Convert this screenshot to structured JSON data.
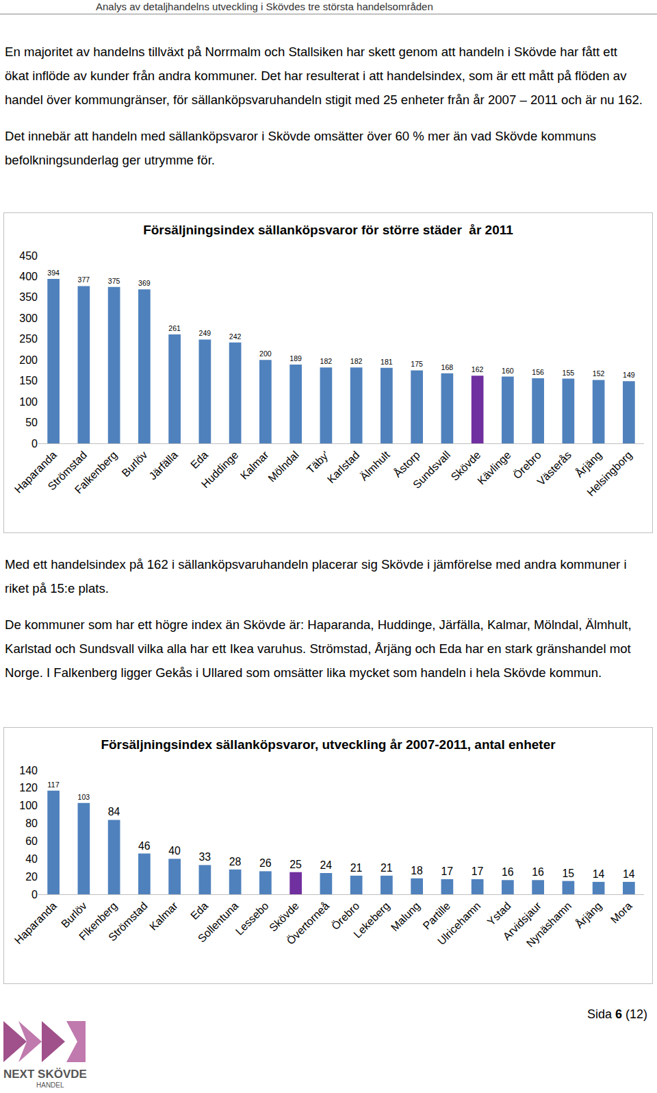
{
  "header": "Analys av detaljhandelns utveckling i Skövdes tre största handelsområden",
  "intro": [
    "En majoritet av handelns tillväxt på Norrmalm och Stallsiken har skett genom att handeln i Skövde har fått ett ökat inflöde av kunder från andra kommuner. Det har resulterat i att handelsindex, som är ett mått på flöden av handel över kommungränser, för sällanköpsvaruhandeln stigit med 25 enheter från år 2007 – 2011 och är nu 162.",
    "Det innebär att handeln med sällanköpsvaror i Skövde omsätter över 60 % mer än vad Skövde kommuns befolkningsunderlag ger utrymme för."
  ],
  "middle": [
    "Med ett handelsindex på 162 i sällanköpsvaruhandeln placerar sig Skövde i jämförelse med andra kommuner i riket på 15:e plats.",
    "De kommuner som har ett högre index än Skövde är: Haparanda, Huddinge, Järfälla, Kalmar, Mölndal, Älmhult, Karlstad och Sundsvall vilka alla har ett Ikea varuhus. Strömstad, Årjäng och Eda har en stark gränshandel mot Norge. I Falkenberg ligger Gekås i Ullared som omsätter lika mycket som handeln i hela Skövde kommun."
  ],
  "chart_data": [
    {
      "type": "bar",
      "title": "Försäljningsindex sällanköpsvaror för större städer  år 2011",
      "categories": [
        "Haparanda",
        "Strömstad",
        "Falkenberg",
        "Burlöv",
        "Järfälla",
        "Eda",
        "Huddinge",
        "Kalmar",
        "Mölndal",
        "Täby'",
        "Karlstad",
        "Älmhult",
        "Åstorp",
        "Sundsvall",
        "Skövde",
        "Kävlinge",
        "Örebro",
        "Västerås",
        "Årjäng",
        "Helsingborg"
      ],
      "values": [
        394,
        377,
        375,
        369,
        261,
        249,
        242,
        200,
        189,
        182,
        182,
        181,
        175,
        168,
        162,
        160,
        156,
        155,
        152,
        149
      ],
      "colors": [
        "#4f81bd",
        "#4f81bd",
        "#4f81bd",
        "#4f81bd",
        "#4f81bd",
        "#4f81bd",
        "#4f81bd",
        "#4f81bd",
        "#4f81bd",
        "#4f81bd",
        "#4f81bd",
        "#4f81bd",
        "#4f81bd",
        "#4f81bd",
        "#7030a0",
        "#4f81bd",
        "#4f81bd",
        "#4f81bd",
        "#4f81bd",
        "#4f81bd"
      ],
      "ylim": [
        0,
        450
      ],
      "yticks": [
        0,
        50,
        100,
        150,
        200,
        250,
        300,
        350,
        400,
        450
      ],
      "grid": false,
      "data_labels": true
    },
    {
      "type": "bar",
      "title": "Försäljningsindex sällanköpsvaror, utveckling år 2007-2011, antal enheter",
      "categories": [
        "Haparanda",
        "Burlöv",
        "Flkenberg",
        "Strömstad",
        "Kalmar",
        "Eda",
        "Sollentuna",
        "Lessebo",
        "Skövde",
        "Övertorneå",
        "Örebro",
        "Lekeberg",
        "Malung",
        "Partille",
        "Ulricehamn",
        "Ystad",
        "Arvidsjaur",
        "Nynäshamn",
        "Årjäng",
        "Mora"
      ],
      "values": [
        117,
        103,
        84,
        46,
        40,
        33,
        28,
        26,
        25,
        24,
        21,
        21,
        18,
        17,
        17,
        16,
        16,
        15,
        14,
        14
      ],
      "colors": [
        "#4f81bd",
        "#4f81bd",
        "#4f81bd",
        "#4f81bd",
        "#4f81bd",
        "#4f81bd",
        "#4f81bd",
        "#4f81bd",
        "#7030a0",
        "#4f81bd",
        "#4f81bd",
        "#4f81bd",
        "#4f81bd",
        "#4f81bd",
        "#4f81bd",
        "#4f81bd",
        "#4f81bd",
        "#4f81bd",
        "#4f81bd",
        "#4f81bd"
      ],
      "ylim": [
        0,
        140
      ],
      "yticks": [
        0,
        20,
        40,
        60,
        80,
        100,
        120,
        140
      ],
      "grid": false,
      "data_labels": true
    }
  ],
  "page": {
    "label": "Sida",
    "number": "6",
    "total": "(12)"
  },
  "logo": {
    "name": "NEXT SKÖVDE",
    "sub": "HANDEL"
  }
}
